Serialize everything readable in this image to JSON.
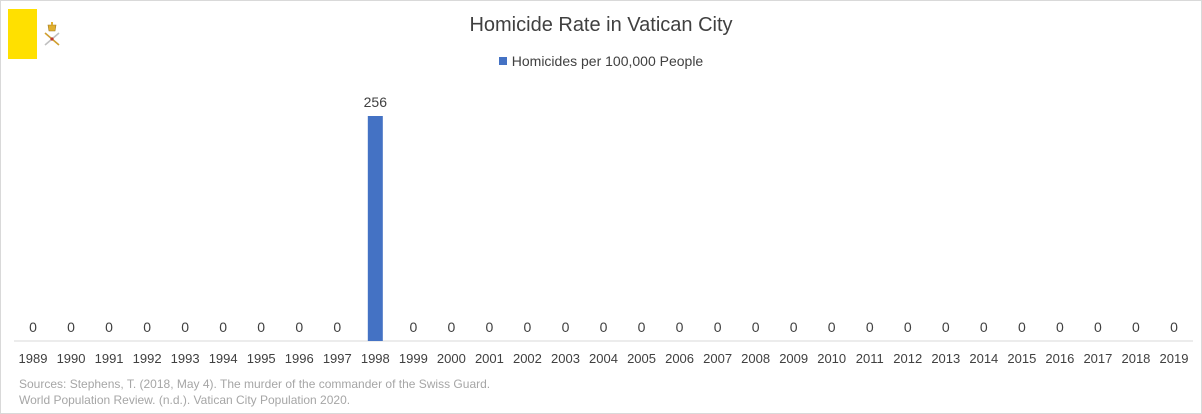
{
  "chart_data": {
    "type": "bar",
    "title": "Homicide Rate in Vatican City",
    "categories": [
      "1989",
      "1990",
      "1991",
      "1992",
      "1993",
      "1994",
      "1995",
      "1996",
      "1997",
      "1998",
      "1999",
      "2000",
      "2001",
      "2002",
      "2003",
      "2004",
      "2005",
      "2006",
      "2007",
      "2008",
      "2009",
      "2010",
      "2011",
      "2012",
      "2013",
      "2014",
      "2015",
      "2016",
      "2017",
      "2018",
      "2019"
    ],
    "series": [
      {
        "name": "Homicides per 100,000 People",
        "color": "#4472c4",
        "values": [
          0,
          0,
          0,
          0,
          0,
          0,
          0,
          0,
          0,
          256,
          0,
          0,
          0,
          0,
          0,
          0,
          0,
          0,
          0,
          0,
          0,
          0,
          0,
          0,
          0,
          0,
          0,
          0,
          0,
          0,
          0
        ]
      }
    ],
    "data_labels": true,
    "legend": "top",
    "grid": false,
    "ylim": [
      0,
      280
    ]
  },
  "sources": {
    "line1": "Sources: Stephens, T. (2018, May 4).  The murder of the commander of the Swiss Guard.",
    "line2": "World Population Review. (n.d.). Vatican City Population 2020."
  },
  "flag": {
    "icon": "vatican-flag-icon",
    "colors": {
      "hoist": "#ffe000",
      "fly": "#ffffff",
      "emblem": "#c8a040",
      "emblem_red": "#c0392b"
    }
  }
}
